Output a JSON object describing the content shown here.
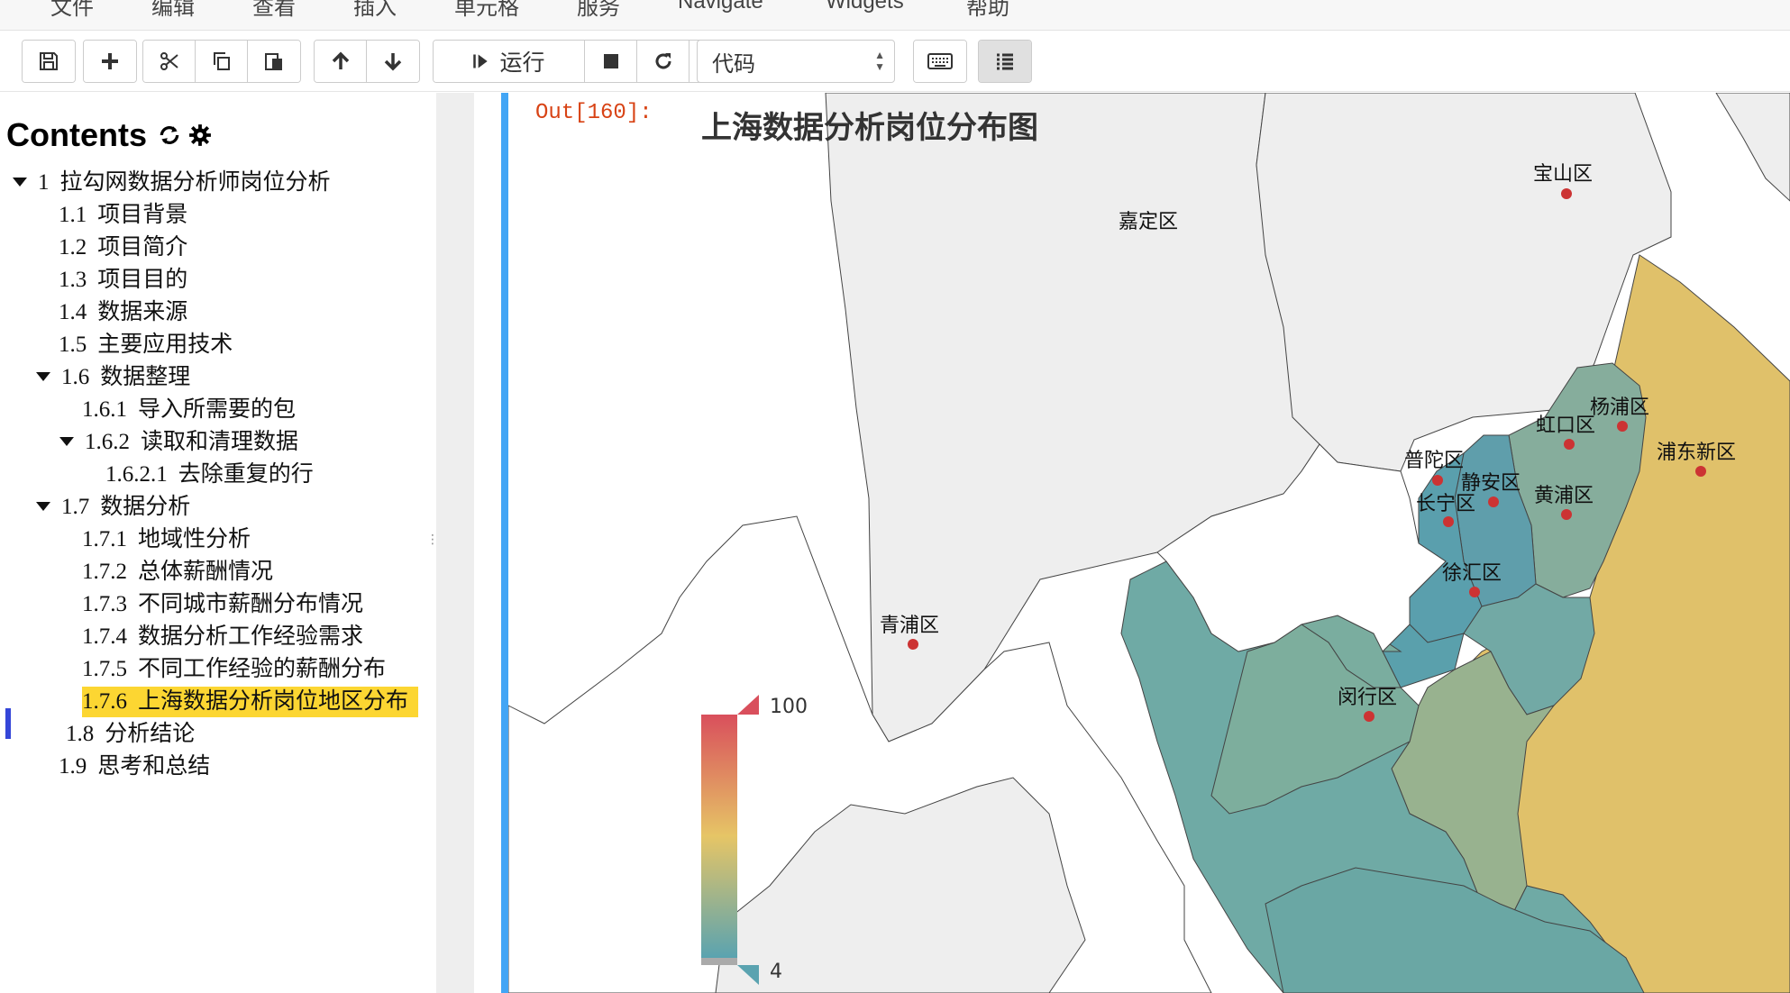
{
  "menubar": {
    "items": [
      "文件",
      "编辑",
      "查看",
      "插入",
      "单元格",
      "服务",
      "Navigate",
      "Widgets",
      "帮助"
    ]
  },
  "toolbar": {
    "run_label": "运行",
    "cell_type": "代码",
    "buttons": [
      "save-icon",
      "plus-icon",
      "cut-icon",
      "copy-icon",
      "paste-icon",
      "move-up-icon",
      "move-down-icon",
      "run-icon",
      "stop-icon",
      "restart-icon",
      "fast-forward-icon",
      "keyboard-icon",
      "list-icon"
    ]
  },
  "toc": {
    "title": "Contents",
    "items": [
      {
        "num": "1",
        "label": "拉勾网数据分析师岗位分析",
        "expanded": true
      },
      {
        "num": "1.1",
        "label": "项目背景"
      },
      {
        "num": "1.2",
        "label": "项目简介"
      },
      {
        "num": "1.3",
        "label": "项目目的"
      },
      {
        "num": "1.4",
        "label": "数据来源"
      },
      {
        "num": "1.5",
        "label": "主要应用技术"
      },
      {
        "num": "1.6",
        "label": "数据整理",
        "expanded": true
      },
      {
        "num": "1.6.1",
        "label": "导入所需要的包"
      },
      {
        "num": "1.6.2",
        "label": "读取和清理数据",
        "expanded": true
      },
      {
        "num": "1.6.2.1",
        "label": "去除重复的行"
      },
      {
        "num": "1.7",
        "label": "数据分析",
        "expanded": true
      },
      {
        "num": "1.7.1",
        "label": "地域性分析"
      },
      {
        "num": "1.7.2",
        "label": "总体薪酬情况"
      },
      {
        "num": "1.7.3",
        "label": "不同城市薪酬分布情况"
      },
      {
        "num": "1.7.4",
        "label": "数据分析工作经验需求"
      },
      {
        "num": "1.7.5",
        "label": "不同工作经验的薪酬分布"
      },
      {
        "num": "1.7.6",
        "label": "上海数据分析岗位地区分布",
        "highlighted": true
      },
      {
        "num": "1.8",
        "label": "分析结论"
      },
      {
        "num": "1.9",
        "label": "思考和总结"
      }
    ]
  },
  "cell": {
    "prompt": "Out[160]:",
    "map_title": "上海数据分析岗位分布图"
  },
  "map": {
    "districts": [
      "宝山区",
      "嘉定区",
      "杨浦区",
      "虹口区",
      "浦东新区",
      "普陀区",
      "静安区",
      "黄浦区",
      "长宁区",
      "徐汇区",
      "青浦区",
      "闵行区"
    ],
    "legend": {
      "max": "100",
      "min": "4"
    },
    "colors": {
      "high": "#d94f5c",
      "mid": "#e6c566",
      "low": "#5aa3b0",
      "nodata": "#eeeeee",
      "point": "#cc3333"
    }
  }
}
